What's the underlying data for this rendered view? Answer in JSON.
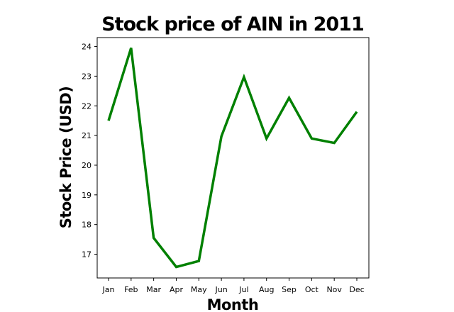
{
  "chart_data": {
    "type": "line",
    "title": "Stock price of AIN in 2011",
    "xlabel": "Month",
    "ylabel": "Stock Price (USD)",
    "categories": [
      "Jan",
      "Feb",
      "Mar",
      "Apr",
      "May",
      "Jun",
      "Jul",
      "Aug",
      "Sep",
      "Oct",
      "Nov",
      "Dec"
    ],
    "series": [
      {
        "values": [
          21.5,
          23.95,
          17.55,
          16.57,
          16.77,
          20.97,
          22.97,
          20.9,
          22.27,
          20.9,
          20.75,
          21.8
        ],
        "color": "#008000"
      }
    ],
    "ylim": [
      16.2,
      24.3
    ],
    "yticks": [
      17,
      18,
      19,
      20,
      21,
      22,
      23,
      24
    ],
    "grid": false,
    "legend": "none"
  }
}
